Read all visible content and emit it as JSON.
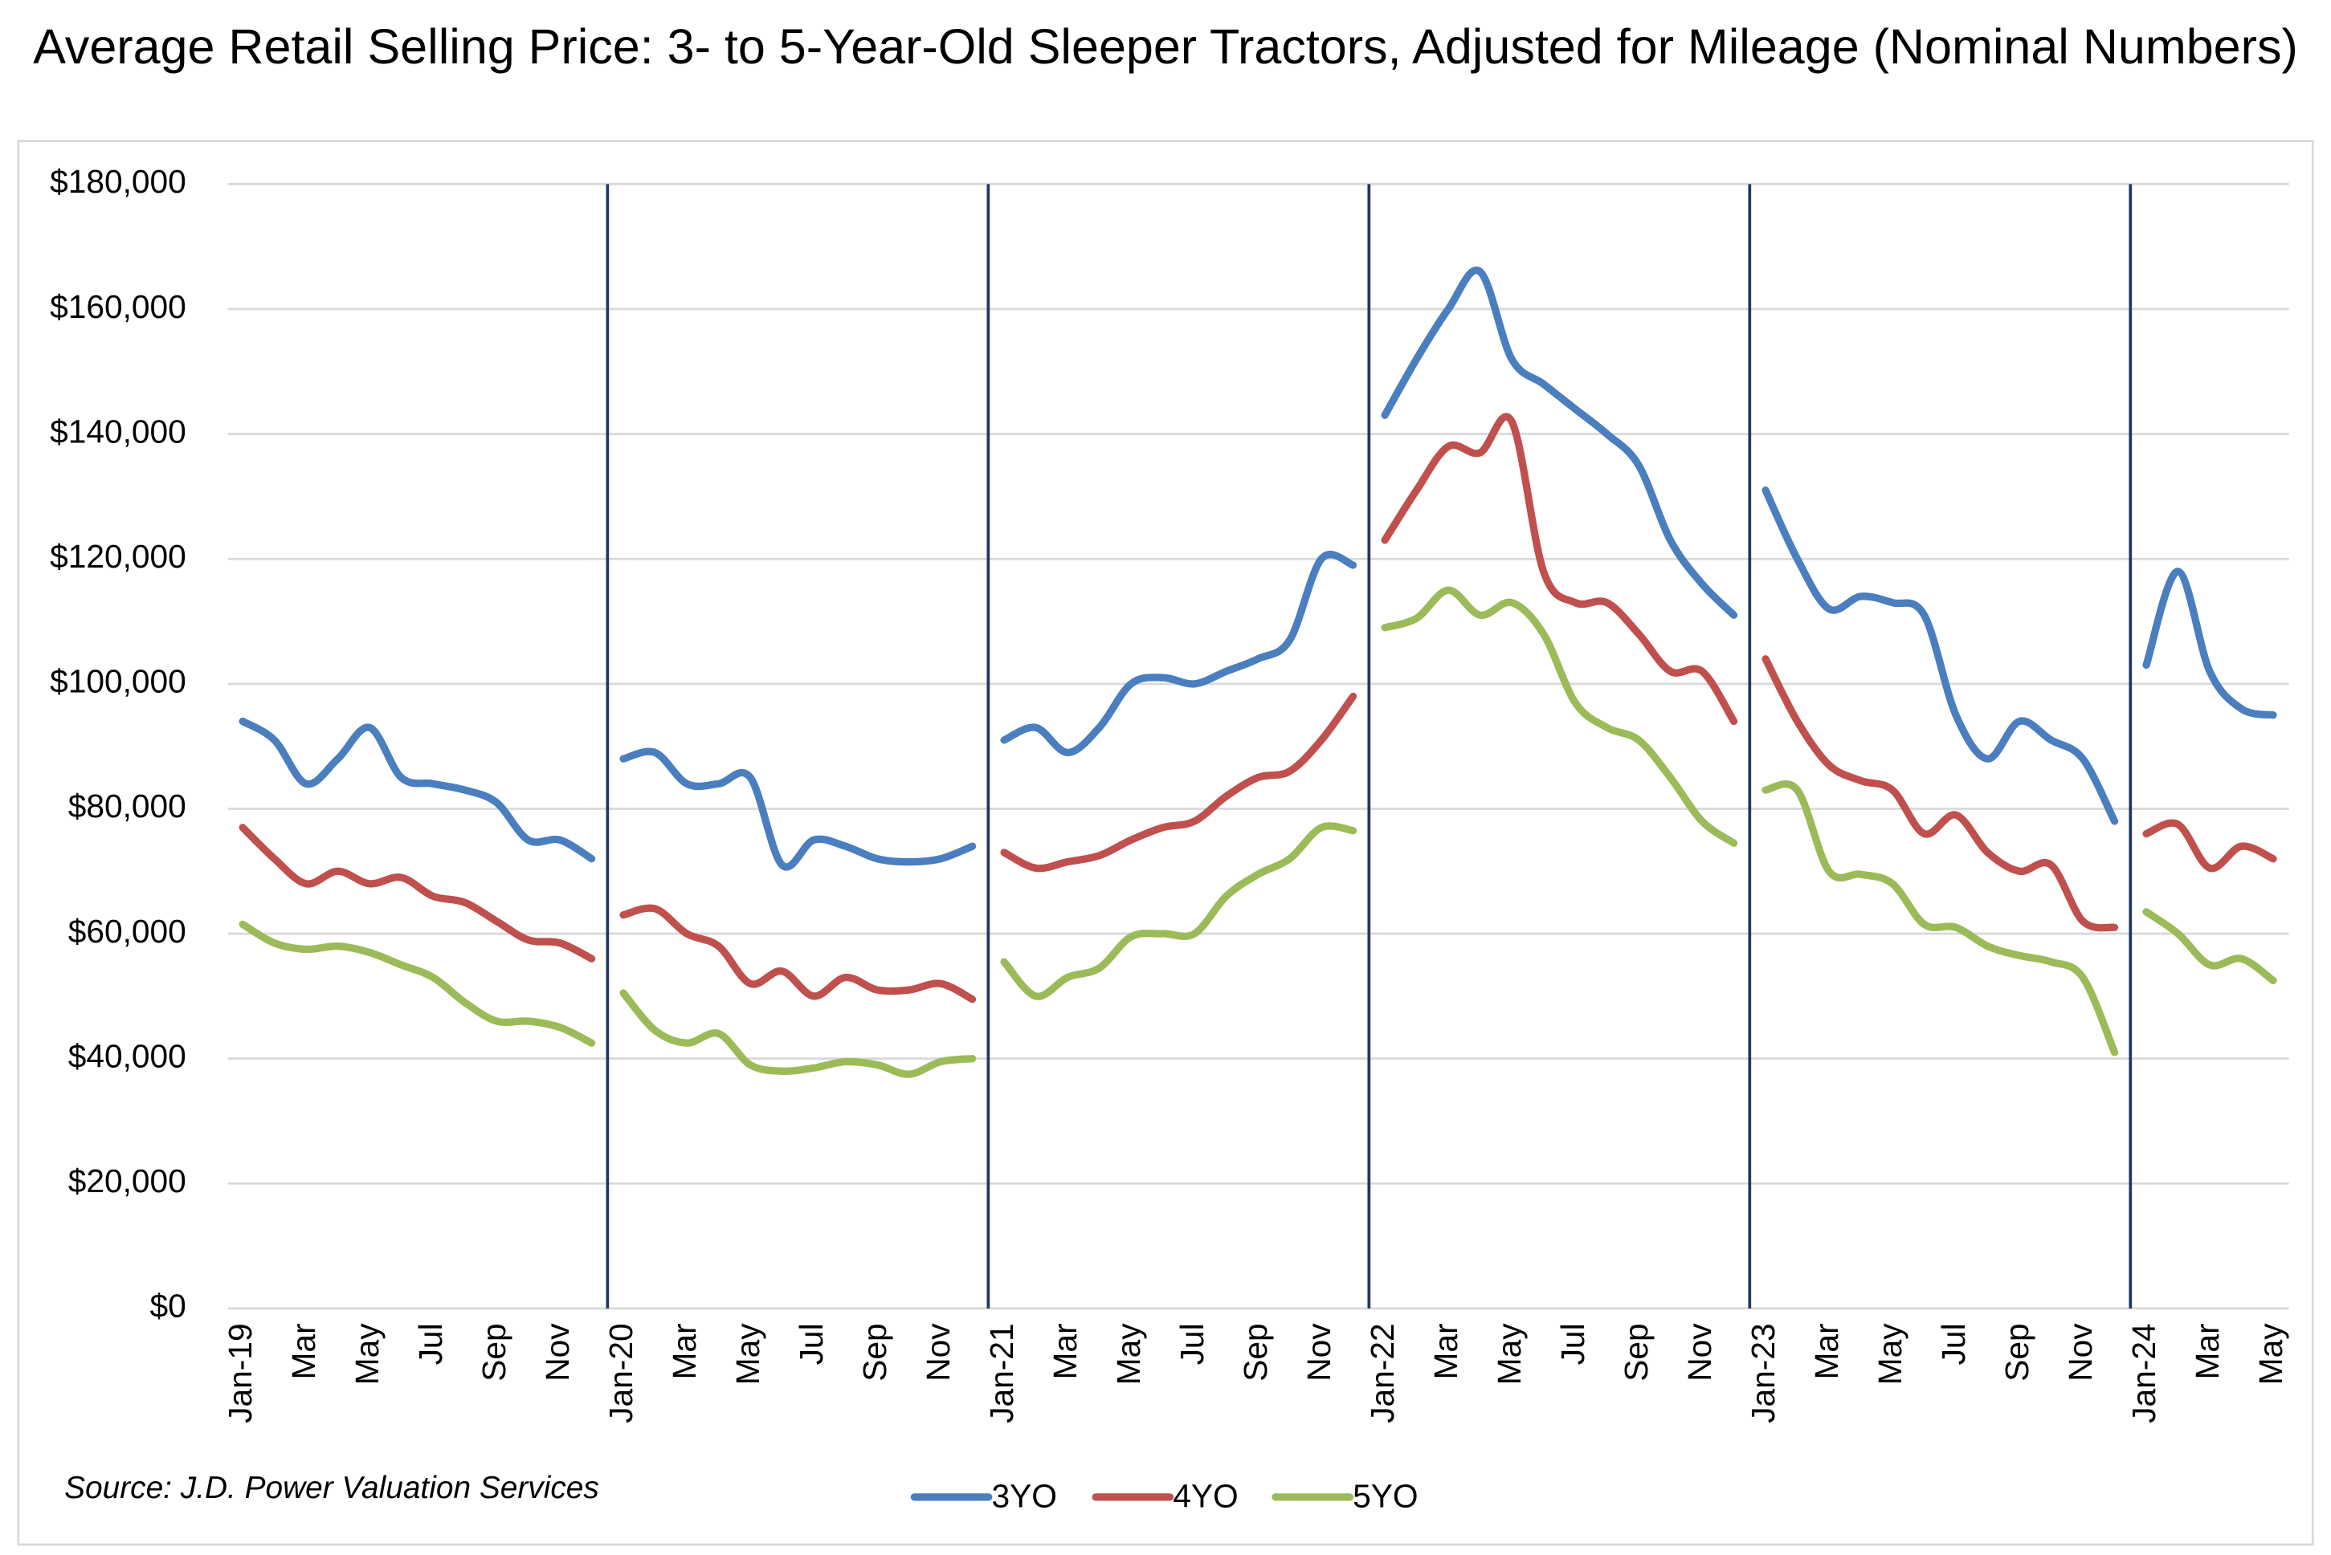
{
  "chart_data": {
    "type": "line",
    "title": "Average Retail Selling Price: 3- to 5-Year-Old Sleeper Tractors, Adjusted for Mileage (Nominal Numbers)",
    "source": "Source: J.D. Power Valuation Services",
    "categories": [
      "Jan-19",
      null,
      "Mar",
      null,
      "May",
      null,
      "Jul",
      null,
      "Sep",
      null,
      "Nov",
      null,
      "Jan-20",
      null,
      "Mar",
      null,
      "May",
      null,
      "Jul",
      null,
      "Sep",
      null,
      "Nov",
      null,
      "Jan-21",
      null,
      "Mar",
      null,
      "May",
      null,
      "Jul",
      null,
      "Sep",
      null,
      "Nov",
      null,
      "Jan-22",
      null,
      "Mar",
      null,
      "May",
      null,
      "Jul",
      null,
      "Sep",
      null,
      "Nov",
      null,
      "Jan-23",
      null,
      "Mar",
      null,
      "May",
      null,
      "Jul",
      null,
      "Sep",
      null,
      "Nov",
      null,
      "Jan-24",
      null,
      "Mar",
      null,
      "May"
    ],
    "series": [
      {
        "name": "3YO",
        "color": "#4a7ebf",
        "values": [
          94000,
          91000,
          84000,
          88000,
          93000,
          85000,
          84000,
          83000,
          81000,
          75000,
          75000,
          72000,
          88000,
          89000,
          84000,
          84000,
          85000,
          71000,
          75000,
          74000,
          72000,
          71500,
          72000,
          74000,
          91000,
          93000,
          89000,
          93000,
          100000,
          101000,
          100000,
          102000,
          104000,
          107000,
          120000,
          119000,
          143000,
          152000,
          160000,
          166000,
          152000,
          148000,
          144000,
          140000,
          135000,
          123000,
          116000,
          111000,
          131000,
          120000,
          112000,
          114000,
          113000,
          111000,
          95000,
          88000,
          94000,
          91000,
          88000,
          78000,
          103000,
          118000,
          102000,
          96000,
          95000
        ]
      },
      {
        "name": "4YO",
        "color": "#c0504d",
        "values": [
          77000,
          72000,
          68000,
          70000,
          68000,
          69000,
          66000,
          65000,
          62000,
          59000,
          58500,
          56000,
          63000,
          64000,
          60000,
          58000,
          52000,
          54000,
          50000,
          53000,
          51000,
          51000,
          52000,
          49500,
          73000,
          70500,
          71500,
          72500,
          75000,
          77000,
          78000,
          82000,
          85000,
          86000,
          91000,
          98000,
          123000,
          131000,
          138000,
          137000,
          142000,
          118000,
          113000,
          113000,
          108000,
          102000,
          102000,
          94000,
          104000,
          94000,
          87000,
          84500,
          83000,
          76000,
          79000,
          73000,
          70000,
          71000,
          62000,
          61000,
          76000,
          77500,
          70500,
          74000,
          72000
        ]
      },
      {
        "name": "5YO",
        "color": "#9bbb59",
        "values": [
          61500,
          58500,
          57500,
          58000,
          57000,
          55000,
          53000,
          49000,
          46000,
          46000,
          45000,
          42500,
          50500,
          44500,
          42500,
          44000,
          39000,
          38000,
          38500,
          39500,
          39000,
          37500,
          39500,
          40000,
          55500,
          50000,
          53000,
          54500,
          59500,
          60000,
          60000,
          66000,
          69500,
          72000,
          77000,
          76500,
          109000,
          110500,
          115000,
          111000,
          113000,
          108000,
          97000,
          93000,
          91000,
          85000,
          78000,
          74500,
          83000,
          83000,
          70000,
          69500,
          68000,
          61500,
          61000,
          58000,
          56500,
          55500,
          53000,
          41000,
          63500,
          60000,
          55000,
          56000,
          52500
        ]
      }
    ],
    "ylim": [
      0,
      180000
    ],
    "yticks": [
      {
        "value": 0,
        "label": "$0"
      },
      {
        "value": 20000,
        "label": "$20,000"
      },
      {
        "value": 40000,
        "label": "$40,000"
      },
      {
        "value": 60000,
        "label": "$60,000"
      },
      {
        "value": 80000,
        "label": "$80,000"
      },
      {
        "value": 100000,
        "label": "$100,000"
      },
      {
        "value": 120000,
        "label": "$120,000"
      },
      {
        "value": 140000,
        "label": "$140,000"
      },
      {
        "value": 160000,
        "label": "$160,000"
      },
      {
        "value": 180000,
        "label": "$180,000"
      }
    ],
    "grid": true,
    "legend": "bottom"
  }
}
